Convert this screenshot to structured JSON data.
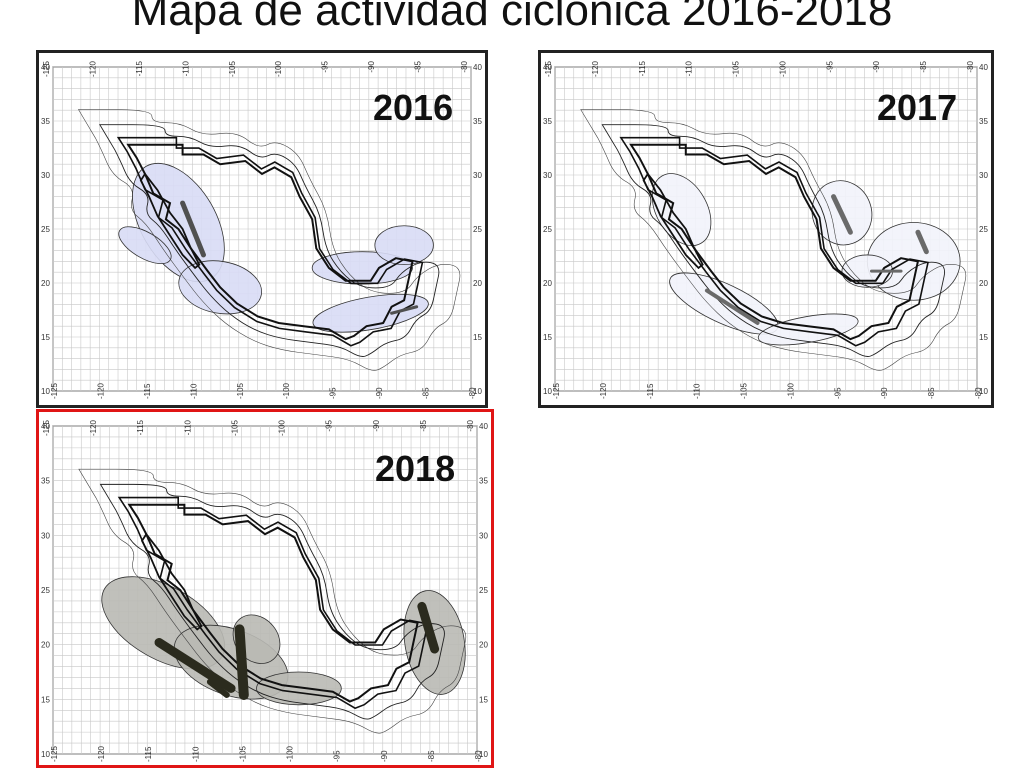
{
  "title": "Mapa de actividad ciclónica 2016-2018",
  "lon_ticks": [
    "-125",
    "-120",
    "-115",
    "-110",
    "-105",
    "-100",
    "-95",
    "-90",
    "-85",
    "-80"
  ],
  "lat_ticks": [
    "10",
    "15",
    "20",
    "25",
    "30",
    "35",
    "40"
  ],
  "panels": [
    {
      "year": "2016",
      "highlighted": false,
      "fill": "#d8dbf5",
      "band": "#505050"
    },
    {
      "year": "2017",
      "highlighted": false,
      "fill": "#f2f3fb",
      "band": "#6a6a6a"
    },
    {
      "year": "2018",
      "highlighted": true,
      "fill": "#b9b9b4",
      "band": "#2b2b1e"
    }
  ],
  "colors": {
    "highlight_border": "#e01515",
    "grid": "#c8c8c8",
    "outline": "#111111"
  }
}
